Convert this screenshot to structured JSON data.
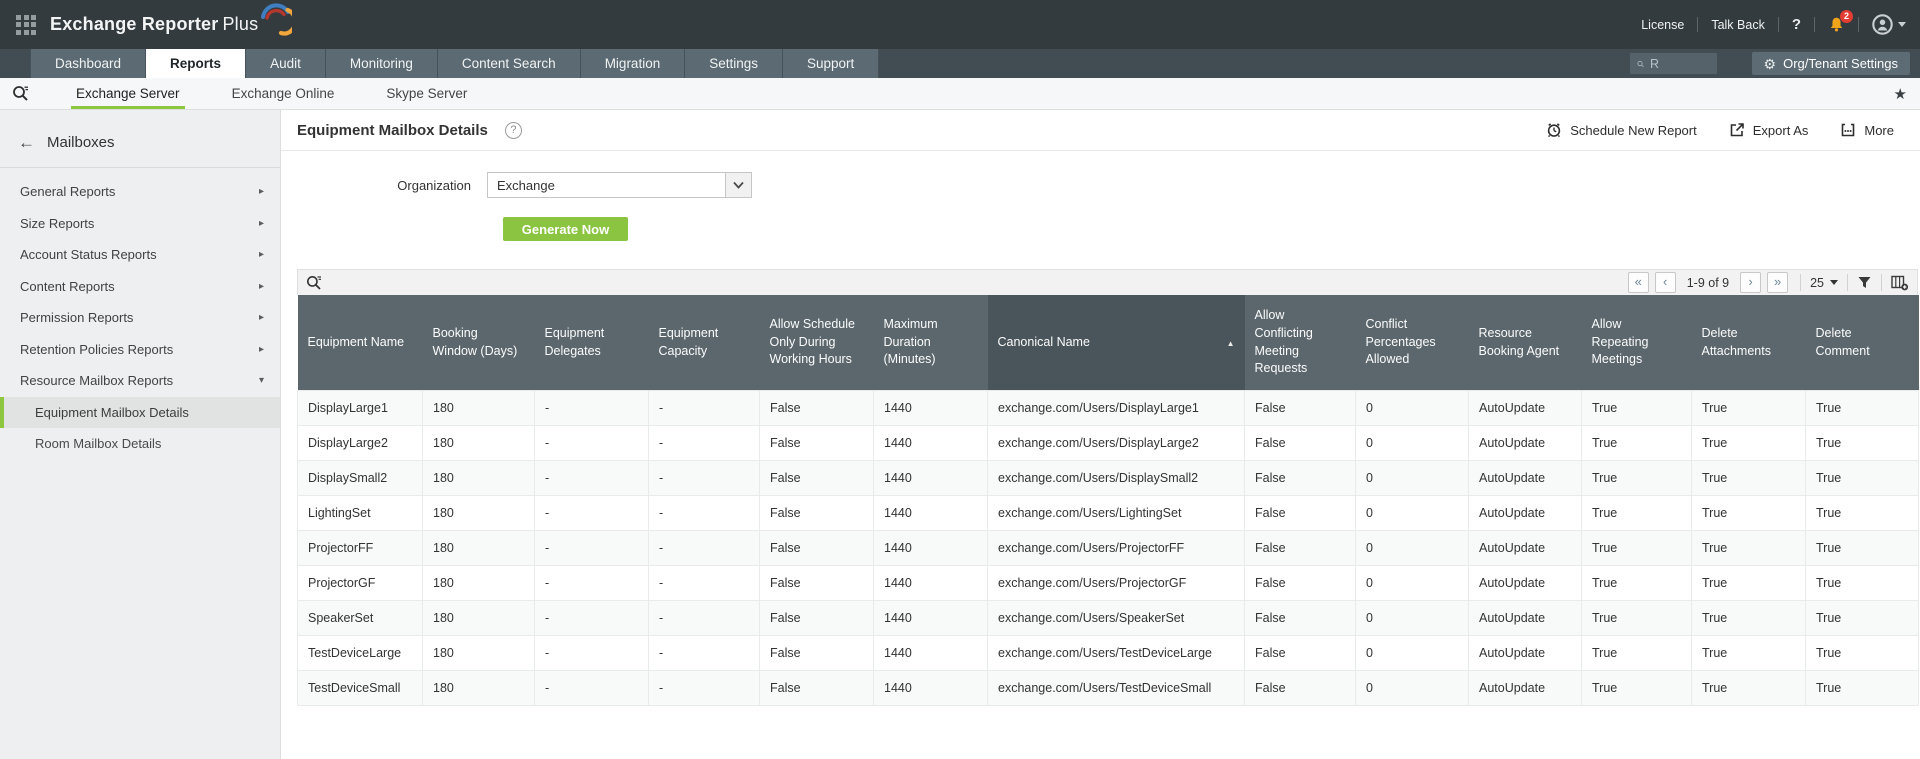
{
  "colors": {
    "accent_green": "#8dc63f",
    "topbar_bg": "#343b3f",
    "nav_bg": "#424d53",
    "tab_bg": "#5b6a73",
    "table_header_bg": "#5c676d",
    "table_header_sorted_bg": "#4a555b",
    "badge_red": "#e23c33",
    "bell_orange": "#f0a41c",
    "generate_green": "#8bc440"
  },
  "topbar": {
    "brand": "Exchange Reporter",
    "brand_accent": "Plus",
    "license": "License",
    "talk_back": "Talk Back",
    "help": "?",
    "notification_count": "2"
  },
  "nav": {
    "tabs": [
      "Dashboard",
      "Reports",
      "Audit",
      "Monitoring",
      "Content Search",
      "Migration",
      "Settings",
      "Support"
    ],
    "active_tab": "Reports",
    "search_value": "R",
    "org_settings": "Org/Tenant Settings"
  },
  "subnav": {
    "tabs": [
      "Exchange Server",
      "Exchange Online",
      "Skype Server"
    ],
    "active_tab": "Exchange Server"
  },
  "sidebar": {
    "back_label": "Mailboxes",
    "items": [
      {
        "label": "General Reports",
        "expanded": false
      },
      {
        "label": "Size Reports",
        "expanded": false
      },
      {
        "label": "Account Status Reports",
        "expanded": false
      },
      {
        "label": "Content Reports",
        "expanded": false
      },
      {
        "label": "Permission Reports",
        "expanded": false
      },
      {
        "label": "Retention Policies Reports",
        "expanded": false
      },
      {
        "label": "Resource Mailbox Reports",
        "expanded": true,
        "children": [
          {
            "label": "Equipment Mailbox Details",
            "selected": true
          },
          {
            "label": "Room Mailbox Details",
            "selected": false
          }
        ]
      }
    ]
  },
  "main": {
    "title": "Equipment Mailbox Details",
    "help": "?",
    "actions": [
      {
        "label": "Schedule New Report",
        "icon": "alarm-clock-icon"
      },
      {
        "label": "Export As",
        "icon": "export-icon"
      },
      {
        "label": "More",
        "icon": "more-icon"
      }
    ],
    "organization_label": "Organization",
    "organization_value": "Exchange",
    "generate_button": "Generate Now"
  },
  "table": {
    "pagination": {
      "first": "«",
      "prev": "‹",
      "range": "1-9 of 9",
      "next": "›",
      "last": "»",
      "page_size": "25"
    },
    "columns": [
      {
        "label": "Equipment Name"
      },
      {
        "label": "Booking Window (Days)"
      },
      {
        "label": "Equipment Delegates"
      },
      {
        "label": "Equipment Capacity"
      },
      {
        "label": "Allow Schedule Only During Working Hours"
      },
      {
        "label": "Maximum Duration (Minutes)"
      },
      {
        "label": "Canonical Name",
        "sorted": "asc"
      },
      {
        "label": "Allow Conflicting Meeting Requests"
      },
      {
        "label": "Conflict Percentages Allowed"
      },
      {
        "label": "Resource Booking Agent"
      },
      {
        "label": "Allow Repeating Meetings"
      },
      {
        "label": "Delete Attachments"
      },
      {
        "label": "Delete Comment"
      }
    ],
    "rows": [
      [
        "DisplayLarge1",
        "180",
        "-",
        "-",
        "False",
        "1440",
        "exchange.com/Users/DisplayLarge1",
        "False",
        "0",
        "AutoUpdate",
        "True",
        "True",
        "True"
      ],
      [
        "DisplayLarge2",
        "180",
        "-",
        "-",
        "False",
        "1440",
        "exchange.com/Users/DisplayLarge2",
        "False",
        "0",
        "AutoUpdate",
        "True",
        "True",
        "True"
      ],
      [
        "DisplaySmall2",
        "180",
        "-",
        "-",
        "False",
        "1440",
        "exchange.com/Users/DisplaySmall2",
        "False",
        "0",
        "AutoUpdate",
        "True",
        "True",
        "True"
      ],
      [
        "LightingSet",
        "180",
        "-",
        "-",
        "False",
        "1440",
        "exchange.com/Users/LightingSet",
        "False",
        "0",
        "AutoUpdate",
        "True",
        "True",
        "True"
      ],
      [
        "ProjectorFF",
        "180",
        "-",
        "-",
        "False",
        "1440",
        "exchange.com/Users/ProjectorFF",
        "False",
        "0",
        "AutoUpdate",
        "True",
        "True",
        "True"
      ],
      [
        "ProjectorGF",
        "180",
        "-",
        "-",
        "False",
        "1440",
        "exchange.com/Users/ProjectorGF",
        "False",
        "0",
        "AutoUpdate",
        "True",
        "True",
        "True"
      ],
      [
        "SpeakerSet",
        "180",
        "-",
        "-",
        "False",
        "1440",
        "exchange.com/Users/SpeakerSet",
        "False",
        "0",
        "AutoUpdate",
        "True",
        "True",
        "True"
      ],
      [
        "TestDeviceLarge",
        "180",
        "-",
        "-",
        "False",
        "1440",
        "exchange.com/Users/TestDeviceLarge",
        "False",
        "0",
        "AutoUpdate",
        "True",
        "True",
        "True"
      ],
      [
        "TestDeviceSmall",
        "180",
        "-",
        "-",
        "False",
        "1440",
        "exchange.com/Users/TestDeviceSmall",
        "False",
        "0",
        "AutoUpdate",
        "True",
        "True",
        "True"
      ]
    ]
  }
}
